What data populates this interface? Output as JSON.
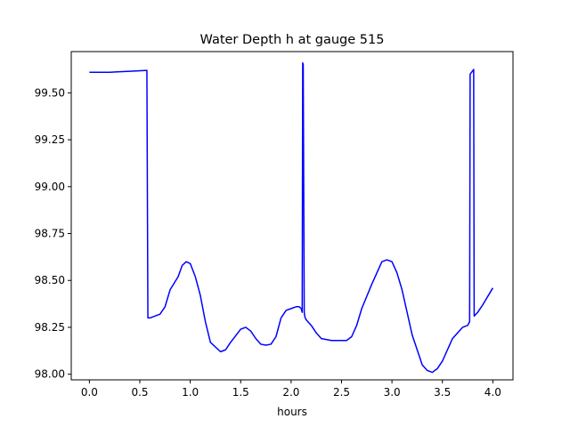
{
  "chart_data": {
    "type": "line",
    "title": "Water Depth h at gauge 515",
    "xlabel": "hours",
    "ylabel": "",
    "xlim": [
      -0.18,
      4.2
    ],
    "ylim": [
      97.97,
      99.72
    ],
    "xticks": [
      0.0,
      0.5,
      1.0,
      1.5,
      2.0,
      2.5,
      3.0,
      3.5,
      4.0
    ],
    "xtick_labels": [
      "0.0",
      "0.5",
      "1.0",
      "1.5",
      "2.0",
      "2.5",
      "3.0",
      "3.5",
      "4.0"
    ],
    "yticks": [
      98.0,
      98.25,
      98.5,
      98.75,
      99.0,
      99.25,
      99.5
    ],
    "ytick_labels": [
      "98.00",
      "98.25",
      "98.50",
      "98.75",
      "99.00",
      "99.25",
      "99.50"
    ],
    "grid": false,
    "series": [
      {
        "color": "#0000ff",
        "x": [
          0.0,
          0.2,
          0.4,
          0.57,
          0.58,
          0.6,
          0.7,
          0.75,
          0.8,
          0.88,
          0.92,
          0.96,
          1.0,
          1.05,
          1.1,
          1.15,
          1.2,
          1.3,
          1.35,
          1.4,
          1.5,
          1.55,
          1.6,
          1.65,
          1.7,
          1.75,
          1.8,
          1.85,
          1.9,
          1.95,
          2.0,
          2.05,
          2.08,
          2.1,
          2.11,
          2.115,
          2.12,
          2.13,
          2.135,
          2.14,
          2.15,
          2.2,
          2.25,
          2.3,
          2.4,
          2.5,
          2.55,
          2.6,
          2.65,
          2.7,
          2.8,
          2.9,
          2.95,
          3.0,
          3.05,
          3.1,
          3.2,
          3.3,
          3.35,
          3.4,
          3.45,
          3.5,
          3.6,
          3.7,
          3.75,
          3.77,
          3.775,
          3.79,
          3.81,
          3.815,
          3.85,
          3.9,
          4.0
        ],
        "y": [
          99.61,
          99.61,
          99.615,
          99.62,
          98.3,
          98.3,
          98.32,
          98.36,
          98.45,
          98.52,
          98.58,
          98.6,
          98.59,
          98.52,
          98.42,
          98.28,
          98.17,
          98.12,
          98.13,
          98.17,
          98.24,
          98.25,
          98.23,
          98.19,
          98.16,
          98.155,
          98.16,
          98.2,
          98.3,
          98.34,
          98.35,
          98.36,
          98.36,
          98.35,
          98.33,
          99.66,
          99.65,
          98.33,
          98.31,
          98.3,
          98.29,
          98.26,
          98.22,
          98.19,
          98.18,
          98.18,
          98.18,
          98.2,
          98.26,
          98.35,
          98.48,
          98.6,
          98.61,
          98.6,
          98.54,
          98.45,
          98.21,
          98.05,
          98.02,
          98.01,
          98.03,
          98.07,
          98.19,
          98.25,
          98.26,
          98.28,
          99.6,
          99.61,
          99.625,
          98.31,
          98.33,
          98.37,
          98.46
        ]
      }
    ]
  }
}
